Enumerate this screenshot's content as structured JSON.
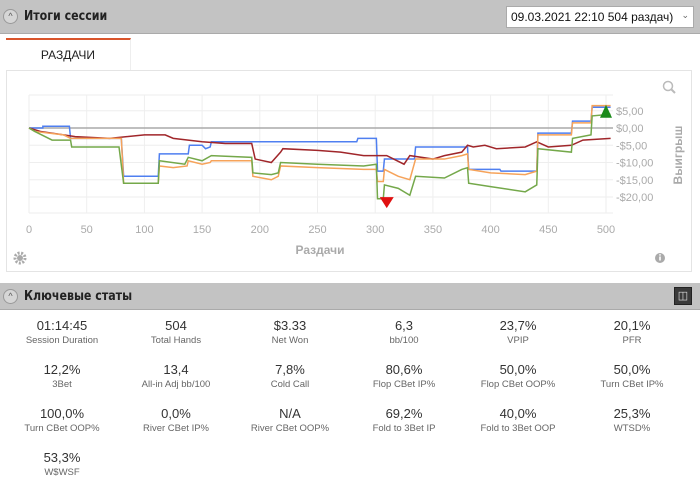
{
  "header": {
    "title": "Итоги сессии",
    "session_select": "09.03.2021 22:10 504 раздач)"
  },
  "tabs": [
    {
      "label": "РАЗДАЧИ",
      "active": true
    }
  ],
  "chart_data": {
    "type": "line",
    "xlabel": "Раздачи",
    "ylabel": "Выигрыш",
    "xlim": [
      0,
      504
    ],
    "ylim": [
      -24,
      10
    ],
    "x_ticks": [
      0,
      50,
      100,
      150,
      200,
      250,
      300,
      350,
      400,
      450,
      500
    ],
    "y_ticks": [
      {
        "v": 5,
        "label": "$5,00"
      },
      {
        "v": 0,
        "label": "$0,00"
      },
      {
        "v": -5,
        "label": "-$5,00"
      },
      {
        "v": -10,
        "label": "-$10,00"
      },
      {
        "v": -15,
        "label": "-$15,00"
      },
      {
        "v": -20,
        "label": "-$20,00"
      }
    ],
    "markers": [
      {
        "type": "max",
        "x": 500,
        "y": 5,
        "color": "#1a8a1a"
      },
      {
        "type": "min",
        "x": 310,
        "y": -21.5,
        "color": "#e01010"
      }
    ],
    "series": [
      {
        "name": "blue",
        "color": "#4f7ff0",
        "points": [
          [
            0,
            0
          ],
          [
            12,
            0
          ],
          [
            12,
            0.5
          ],
          [
            35,
            0.5
          ],
          [
            36,
            -3
          ],
          [
            80,
            -3
          ],
          [
            82,
            -14
          ],
          [
            112,
            -14
          ],
          [
            113,
            -7.5
          ],
          [
            138,
            -7.5
          ],
          [
            139,
            -5
          ],
          [
            150,
            -5
          ],
          [
            153,
            -6
          ],
          [
            157,
            -5.5
          ],
          [
            158,
            -4
          ],
          [
            284,
            -4
          ],
          [
            285,
            -3
          ],
          [
            301,
            -3
          ],
          [
            302,
            -12.5
          ],
          [
            307,
            -12.5
          ],
          [
            308,
            -9
          ],
          [
            334,
            -9
          ],
          [
            335,
            -5.5
          ],
          [
            380,
            -5.5
          ],
          [
            381,
            -12
          ],
          [
            408,
            -12
          ],
          [
            409,
            -12.5
          ],
          [
            440,
            -12.5
          ],
          [
            441,
            -1.5
          ],
          [
            470,
            -1.5
          ],
          [
            471,
            2
          ],
          [
            487,
            2
          ],
          [
            488,
            6
          ],
          [
            504,
            6
          ]
        ]
      },
      {
        "name": "dark-red",
        "color": "#a0262a",
        "points": [
          [
            0,
            0
          ],
          [
            10,
            -1
          ],
          [
            30,
            -2
          ],
          [
            40,
            -2.5
          ],
          [
            70,
            -3
          ],
          [
            100,
            -2
          ],
          [
            118,
            -2
          ],
          [
            125,
            -3
          ],
          [
            150,
            -4
          ],
          [
            170,
            -4.5
          ],
          [
            193,
            -4.5
          ],
          [
            196,
            -9
          ],
          [
            210,
            -10
          ],
          [
            218,
            -7
          ],
          [
            220,
            -6
          ],
          [
            250,
            -6.5
          ],
          [
            270,
            -7
          ],
          [
            290,
            -8
          ],
          [
            310,
            -8
          ],
          [
            325,
            -10.5
          ],
          [
            330,
            -8
          ],
          [
            350,
            -9
          ],
          [
            360,
            -8
          ],
          [
            375,
            -7
          ],
          [
            380,
            -5
          ],
          [
            385,
            -5.5
          ],
          [
            395,
            -5
          ],
          [
            405,
            -6
          ],
          [
            430,
            -5.5
          ],
          [
            440,
            -4
          ],
          [
            450,
            -5.5
          ],
          [
            470,
            -5
          ],
          [
            480,
            -3.5
          ],
          [
            504,
            -3
          ]
        ]
      },
      {
        "name": "orange",
        "color": "#f6a35a",
        "points": [
          [
            0,
            0
          ],
          [
            5,
            -1
          ],
          [
            30,
            -2
          ],
          [
            36,
            -3
          ],
          [
            80,
            -3
          ],
          [
            82,
            -16
          ],
          [
            112,
            -16
          ],
          [
            113,
            -11
          ],
          [
            125,
            -11.5
          ],
          [
            137,
            -11
          ],
          [
            138,
            -9.5
          ],
          [
            150,
            -10.5
          ],
          [
            157,
            -10
          ],
          [
            158,
            -9.5
          ],
          [
            193,
            -9.5
          ],
          [
            194,
            -14
          ],
          [
            210,
            -15
          ],
          [
            216,
            -14
          ],
          [
            218,
            -11
          ],
          [
            250,
            -11.5
          ],
          [
            290,
            -12
          ],
          [
            301,
            -12
          ],
          [
            302,
            -15.5
          ],
          [
            307,
            -15.5
          ],
          [
            308,
            -12
          ],
          [
            320,
            -14
          ],
          [
            330,
            -15
          ],
          [
            335,
            -9
          ],
          [
            360,
            -9
          ],
          [
            375,
            -8
          ],
          [
            380,
            -7.5
          ],
          [
            381,
            -12
          ],
          [
            400,
            -13
          ],
          [
            430,
            -13.5
          ],
          [
            440,
            -12.5
          ],
          [
            441,
            -2
          ],
          [
            470,
            -2
          ],
          [
            471,
            1.5
          ],
          [
            487,
            1.5
          ],
          [
            488,
            6.5
          ],
          [
            504,
            6.5
          ]
        ]
      },
      {
        "name": "green",
        "color": "#74a84a",
        "points": [
          [
            0,
            0
          ],
          [
            5,
            -1
          ],
          [
            20,
            -3.5
          ],
          [
            36,
            -3.5
          ],
          [
            37,
            -5.5
          ],
          [
            78,
            -5.5
          ],
          [
            82,
            -16
          ],
          [
            112,
            -16
          ],
          [
            113,
            -9.5
          ],
          [
            135,
            -10.5
          ],
          [
            138,
            -8.5
          ],
          [
            150,
            -9.5
          ],
          [
            158,
            -8
          ],
          [
            193,
            -8.5
          ],
          [
            194,
            -13
          ],
          [
            210,
            -13.5
          ],
          [
            216,
            -13
          ],
          [
            218,
            -10
          ],
          [
            250,
            -10.5
          ],
          [
            290,
            -11
          ],
          [
            301,
            -10.5
          ],
          [
            302,
            -20.5
          ],
          [
            307,
            -20.5
          ],
          [
            308,
            -16.5
          ],
          [
            320,
            -17.5
          ],
          [
            330,
            -19.5
          ],
          [
            335,
            -14
          ],
          [
            360,
            -14.5
          ],
          [
            375,
            -12
          ],
          [
            380,
            -11.5
          ],
          [
            381,
            -16
          ],
          [
            400,
            -17
          ],
          [
            430,
            -18.5
          ],
          [
            440,
            -16.5
          ],
          [
            441,
            -6
          ],
          [
            470,
            -7
          ],
          [
            471,
            -3
          ],
          [
            487,
            -2
          ],
          [
            488,
            3.5
          ],
          [
            504,
            4
          ]
        ]
      }
    ]
  },
  "stats_section": {
    "title": "Ключевые статы"
  },
  "stats": [
    {
      "value": "01:14:45",
      "label": "Session Duration"
    },
    {
      "value": "504",
      "label": "Total Hands"
    },
    {
      "value": "$3.33",
      "label": "Net Won"
    },
    {
      "value": "6,3",
      "label": "bb/100"
    },
    {
      "value": "23,7%",
      "label": "VPIP"
    },
    {
      "value": "20,1%",
      "label": "PFR"
    },
    {
      "value": "12,2%",
      "label": "3Bet"
    },
    {
      "value": "13,4",
      "label": "All-in Adj bb/100"
    },
    {
      "value": "7,8%",
      "label": "Cold Call"
    },
    {
      "value": "80,6%",
      "label": "Flop CBet IP%"
    },
    {
      "value": "50,0%",
      "label": "Flop CBet OOP%"
    },
    {
      "value": "50,0%",
      "label": "Turn CBet IP%"
    },
    {
      "value": "100,0%",
      "label": "Turn CBet OOP%"
    },
    {
      "value": "0,0%",
      "label": "River CBet IP%"
    },
    {
      "value": "N/A",
      "label": "River CBet OOP%"
    },
    {
      "value": "69,2%",
      "label": "Fold to 3Bet IP"
    },
    {
      "value": "40,0%",
      "label": "Fold to 3Bet OOP"
    },
    {
      "value": "25,3%",
      "label": "WTSD%"
    },
    {
      "value": "53,3%",
      "label": "W$WSF"
    }
  ]
}
